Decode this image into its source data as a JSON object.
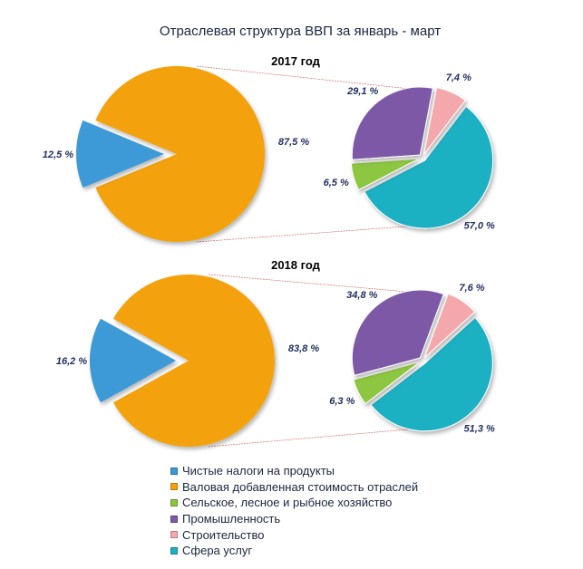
{
  "chart_data": {
    "type": "pie",
    "title": "Отраслевая структура ВВП за январь - март",
    "legend": {
      "placement": "bottom",
      "entries": [
        {
          "name": "Чистые налоги на продукты",
          "color": "#3d9ad6"
        },
        {
          "name": "Валовая добавленная стоимость отраслей",
          "color": "#f3a20a"
        },
        {
          "name": "Сельское, лесное и рыбное хозяйство",
          "color": "#8dc63f"
        },
        {
          "name": "Промышленность",
          "color": "#7d58a6"
        },
        {
          "name": "Строительство",
          "color": "#f4a8ab"
        },
        {
          "name": "Сфера услуг",
          "color": "#1fb0c3"
        }
      ]
    },
    "panels": [
      {
        "year_label": "2017 год",
        "main": [
          {
            "name": "Чистые налоги на продукты",
            "value": 12.5,
            "label": "12,5 %"
          },
          {
            "name": "Валовая добавленная стоимость отраслей",
            "value": 87.5,
            "label": "87,5 %"
          }
        ],
        "breakdown": [
          {
            "name": "Сфера услуг",
            "value": 57.0,
            "label": "57,0 %"
          },
          {
            "name": "Сельское, лесное и рыбное хозяйство",
            "value": 6.5,
            "label": "6,5 %"
          },
          {
            "name": "Промышленность",
            "value": 29.1,
            "label": "29,1 %"
          },
          {
            "name": "Строительство",
            "value": 7.4,
            "label": "7,4 %"
          }
        ]
      },
      {
        "year_label": "2018 год",
        "main": [
          {
            "name": "Чистые налоги на продукты",
            "value": 16.2,
            "label": "16,2 %"
          },
          {
            "name": "Валовая добавленная стоимость отраслей",
            "value": 83.8,
            "label": "83,8 %"
          }
        ],
        "breakdown": [
          {
            "name": "Сфера услуг",
            "value": 51.3,
            "label": "51,3 %"
          },
          {
            "name": "Сельское, лесное и рыбное хозяйство",
            "value": 6.3,
            "label": "6,3 %"
          },
          {
            "name": "Промышленность",
            "value": 34.8,
            "label": "34,8 %"
          },
          {
            "name": "Строительство",
            "value": 7.6,
            "label": "7,6 %"
          }
        ]
      }
    ]
  }
}
